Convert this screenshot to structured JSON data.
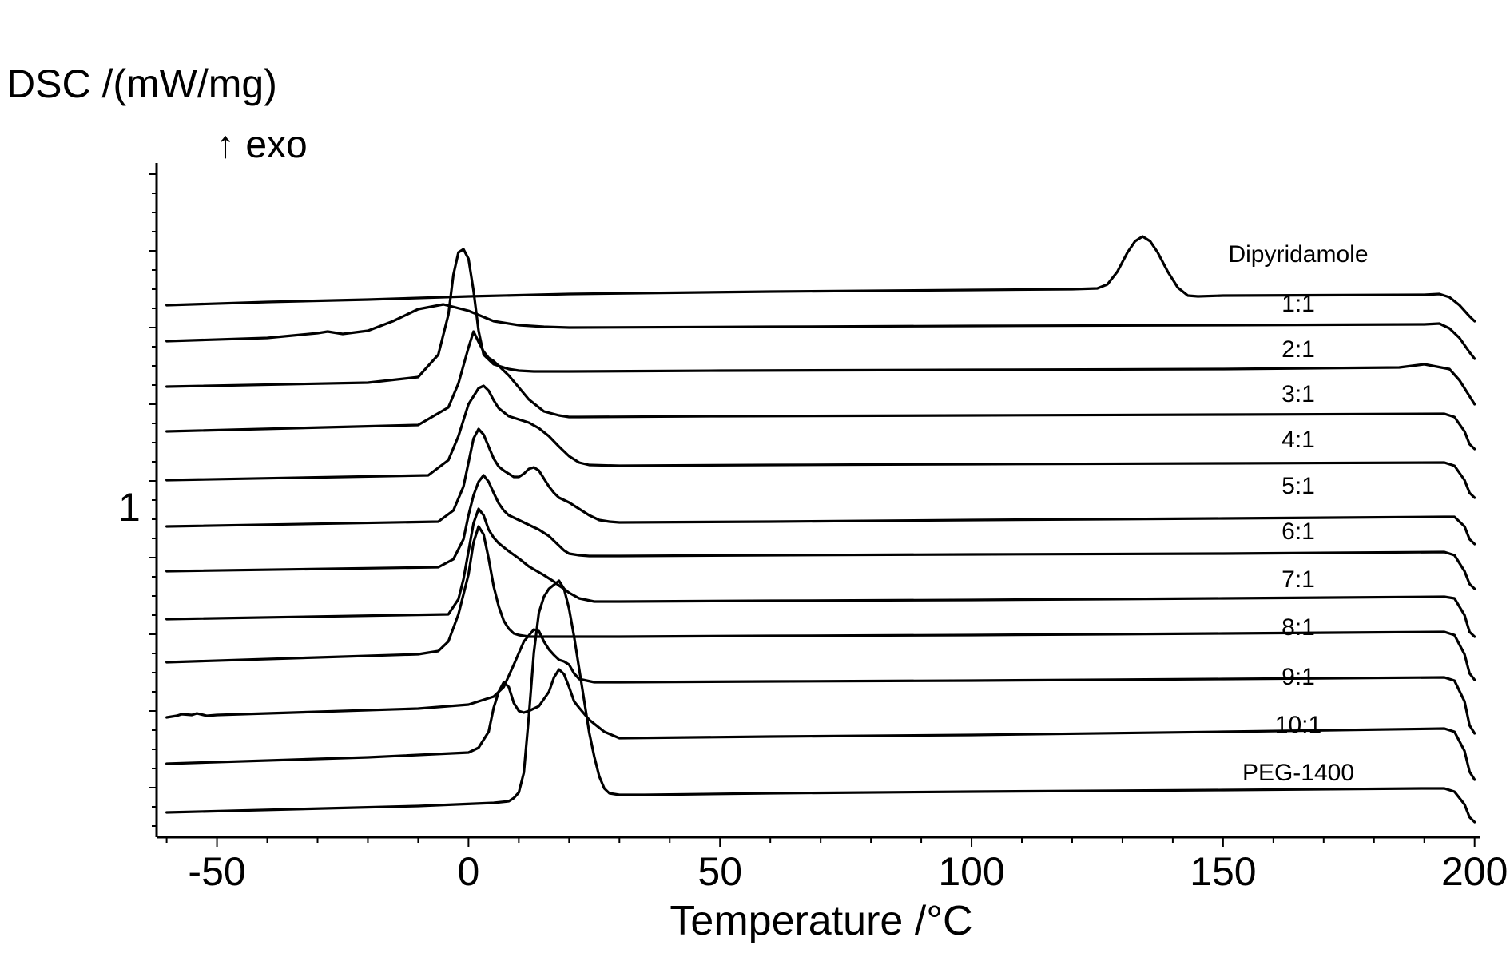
{
  "chart_data": {
    "type": "line",
    "title": "",
    "xlabel": "Temperature /°C",
    "ylabel": "DSC /(mW/mg)",
    "exo_annotation": "↑ exo",
    "y_tick_label": "1",
    "xlim": [
      -62,
      201
    ],
    "xticks": [
      -50,
      0,
      50,
      100,
      150,
      200
    ],
    "grid": false,
    "legend": "labels placed at right end of each curve",
    "colors": {
      "line": "#000000",
      "background": "#ffffff"
    },
    "series": [
      {
        "name": "Dipyridamole",
        "x": [
          -60,
          -40,
          -20,
          0,
          20,
          60,
          100,
          120,
          125,
          127,
          129,
          131,
          132.5,
          134,
          135.5,
          137,
          139,
          141,
          143,
          145,
          150,
          190,
          193,
          195,
          197,
          199,
          200
        ],
        "offset": [
          0,
          4,
          7,
          11,
          14,
          17,
          19,
          20,
          21,
          26,
          42,
          66,
          80,
          86,
          80,
          66,
          42,
          22,
          12,
          11,
          12,
          13,
          14,
          10,
          0,
          -14,
          -20
        ]
      },
      {
        "name": "1:1",
        "x": [
          -60,
          -40,
          -30,
          -28,
          -25,
          -20,
          -15,
          -10,
          -5,
          0,
          5,
          10,
          15,
          20,
          60,
          100,
          150,
          190,
          193,
          195,
          197,
          199,
          200
        ],
        "offset": [
          0,
          4,
          10,
          12,
          9,
          13,
          25,
          40,
          46,
          38,
          25,
          20,
          18,
          17,
          18,
          19,
          20,
          21,
          22,
          16,
          4,
          -14,
          -22
        ]
      },
      {
        "name": "2:1",
        "x": [
          -60,
          -20,
          -10,
          -6,
          -4,
          -3,
          -2,
          -1,
          0,
          1,
          2,
          3,
          5,
          8,
          10,
          13,
          20,
          50,
          100,
          150,
          185,
          190,
          195,
          197,
          199,
          200
        ],
        "offset": [
          0,
          5,
          12,
          40,
          90,
          140,
          168,
          172,
          160,
          120,
          70,
          40,
          28,
          22,
          20,
          19,
          19,
          20,
          21,
          22,
          24,
          28,
          22,
          8,
          -12,
          -22
        ]
      },
      {
        "name": "3:1",
        "x": [
          -60,
          -10,
          -4,
          -2,
          0,
          1,
          2,
          3,
          4,
          5,
          6,
          8,
          10,
          12,
          15,
          18,
          19,
          20,
          22,
          50,
          100,
          150,
          194,
          196,
          198,
          199,
          200
        ],
        "offset": [
          0,
          8,
          30,
          60,
          105,
          125,
          112,
          100,
          92,
          88,
          82,
          70,
          55,
          40,
          25,
          20,
          19,
          18,
          18,
          19,
          20,
          21,
          22,
          18,
          0,
          -16,
          -22
        ]
      },
      {
        "name": "4:1",
        "x": [
          -60,
          -8,
          -4,
          -2,
          0,
          2,
          3,
          4,
          5,
          6,
          8,
          10,
          12,
          14,
          16,
          18,
          20,
          22,
          24,
          30,
          60,
          100,
          150,
          194,
          196,
          198,
          199,
          200
        ],
        "offset": [
          0,
          6,
          25,
          55,
          95,
          115,
          118,
          112,
          100,
          90,
          80,
          76,
          72,
          65,
          55,
          42,
          30,
          22,
          19,
          18,
          19,
          20,
          21,
          22,
          18,
          0,
          -16,
          -22
        ]
      },
      {
        "name": "5:1",
        "x": [
          -60,
          -6,
          -3,
          -1,
          0,
          1,
          2,
          3,
          4,
          5,
          6,
          7,
          8,
          9,
          10,
          11,
          12,
          13,
          14,
          15,
          16,
          17,
          18,
          19,
          20,
          22,
          24,
          26,
          28,
          30,
          60,
          100,
          150,
          194,
          196,
          198,
          199,
          200
        ],
        "offset": [
          0,
          6,
          20,
          50,
          80,
          110,
          122,
          115,
          100,
          85,
          75,
          70,
          66,
          62,
          62,
          66,
          72,
          74,
          70,
          60,
          50,
          42,
          36,
          33,
          30,
          22,
          14,
          8,
          6,
          5,
          6,
          8,
          10,
          12,
          12,
          0,
          -16,
          -22
        ]
      },
      {
        "name": "6:1",
        "x": [
          -60,
          -6,
          -3,
          -1,
          0,
          1,
          2,
          3,
          4,
          5,
          6,
          7,
          8,
          10,
          12,
          14,
          16,
          18,
          19,
          20,
          22,
          24,
          30,
          60,
          100,
          150,
          194,
          196,
          198,
          199,
          200
        ],
        "offset": [
          0,
          5,
          15,
          40,
          70,
          95,
          112,
          120,
          112,
          98,
          85,
          76,
          70,
          64,
          58,
          52,
          44,
          32,
          26,
          22,
          20,
          19,
          19,
          20,
          21,
          22,
          24,
          20,
          0,
          -16,
          -22
        ]
      },
      {
        "name": "7:1",
        "x": [
          -60,
          -4,
          -2,
          -1,
          0,
          1,
          2,
          3,
          4,
          5,
          6,
          7,
          8,
          10,
          12,
          15,
          17,
          18,
          19,
          20,
          22,
          25,
          30,
          60,
          100,
          150,
          194,
          196,
          198,
          199,
          200
        ],
        "offset": [
          0,
          6,
          25,
          50,
          85,
          120,
          138,
          130,
          112,
          102,
          95,
          90,
          85,
          76,
          66,
          55,
          47,
          42,
          38,
          33,
          26,
          22,
          22,
          23,
          24,
          26,
          28,
          26,
          5,
          -16,
          -22
        ]
      },
      {
        "name": "8:1",
        "x": [
          -60,
          -30,
          -10,
          -6,
          -4,
          -2,
          0,
          1,
          2,
          3,
          4,
          5,
          6,
          7,
          8,
          9,
          10,
          12,
          15,
          30,
          60,
          100,
          150,
          194,
          196,
          198,
          199,
          200
        ],
        "offset": [
          0,
          6,
          10,
          14,
          26,
          60,
          110,
          150,
          170,
          160,
          130,
          95,
          70,
          52,
          42,
          36,
          34,
          32,
          32,
          32,
          33,
          34,
          36,
          38,
          34,
          10,
          -14,
          -22
        ]
      },
      {
        "name": "9:1",
        "x": [
          -60,
          -58,
          -57,
          -55,
          -54,
          -52,
          -50,
          -30,
          -10,
          0,
          5,
          7,
          9,
          11,
          13,
          14,
          15,
          16,
          17,
          18,
          19,
          20,
          21,
          22,
          25,
          30,
          60,
          100,
          150,
          194,
          196,
          198,
          199,
          200
        ],
        "offset": [
          0,
          2,
          4,
          3,
          5,
          2,
          3,
          7,
          11,
          16,
          26,
          38,
          66,
          95,
          110,
          108,
          95,
          85,
          78,
          72,
          70,
          66,
          55,
          48,
          44,
          44,
          45,
          46,
          48,
          50,
          46,
          20,
          -10,
          -20
        ]
      },
      {
        "name": "10:1",
        "x": [
          -60,
          -20,
          0,
          2,
          4,
          5,
          6,
          7,
          8,
          9,
          10,
          11,
          12,
          14,
          16,
          17,
          18,
          19,
          20,
          21,
          22,
          24,
          27,
          30,
          60,
          100,
          150,
          194,
          196,
          198,
          199,
          200
        ],
        "offset": [
          0,
          8,
          14,
          20,
          40,
          70,
          90,
          102,
          96,
          76,
          66,
          64,
          66,
          72,
          90,
          108,
          118,
          112,
          96,
          78,
          70,
          55,
          40,
          32,
          34,
          36,
          40,
          44,
          40,
          16,
          -10,
          -20
        ]
      },
      {
        "name": "PEG-1400",
        "x": [
          -60,
          -10,
          5,
          8,
          9,
          10,
          11,
          12,
          13,
          14,
          15,
          16,
          17,
          18,
          19,
          20,
          21,
          22,
          23,
          24,
          25,
          26,
          27,
          28,
          30,
          35,
          60,
          100,
          150,
          190,
          194,
          196,
          198,
          199,
          200
        ],
        "offset": [
          0,
          8,
          12,
          14,
          18,
          25,
          50,
          120,
          200,
          250,
          270,
          280,
          285,
          290,
          280,
          255,
          220,
          180,
          140,
          100,
          70,
          45,
          30,
          24,
          22,
          22,
          24,
          26,
          28,
          30,
          30,
          26,
          10,
          -6,
          -12
        ]
      }
    ]
  }
}
